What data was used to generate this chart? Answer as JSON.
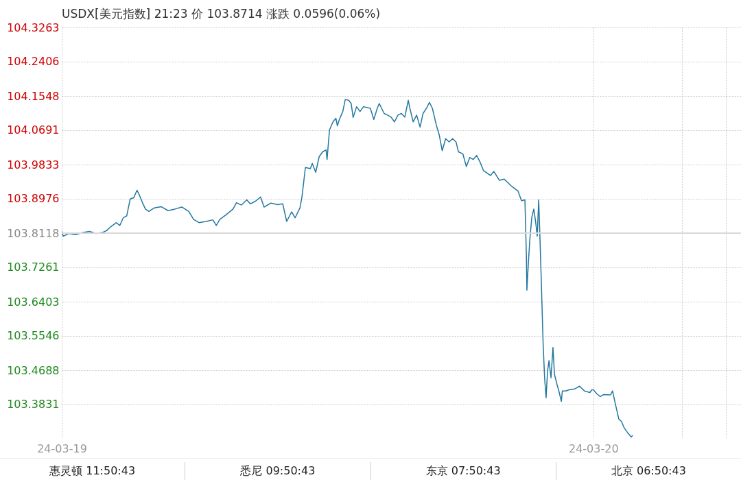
{
  "chart_data": {
    "type": "line",
    "title": "USDX[美元指数] 21:23 价 103.8714 涨跌 0.0596(0.06%)",
    "annotations": [
      "惠灵顿 11:50:43",
      "悉尼 09:50:43",
      "东京 07:50:43",
      "北京 06:50:43"
    ],
    "x": [
      "--03-19T06:00",
      "--03-19T06:03",
      "--03-19T06:14",
      "--03-19T06:28",
      "--03-19T06:42",
      "--03-19T06:56",
      "--03-19T07:10",
      "--03-19T07:24",
      "--03-19T07:31",
      "--03-19T07:38",
      "--03-19T07:51",
      "--03-19T07:58",
      "--03-19T08:05",
      "--03-19T08:12",
      "--03-19T08:19",
      "--03-19T08:26",
      "--03-19T08:33",
      "--03-19T08:37",
      "--03-19T08:44",
      "--03-19T08:50",
      "--03-19T08:57",
      "--03-19T09:08",
      "--03-19T09:22",
      "--03-19T09:36",
      "--03-19T09:50",
      "--03-19T10:04",
      "--03-19T10:18",
      "--03-19T10:28",
      "--03-19T10:39",
      "--03-19T10:53",
      "--03-19T11:07",
      "--03-19T11:14",
      "--03-19T11:21",
      "--03-19T11:34",
      "--03-19T11:48",
      "--03-19T11:55",
      "--03-19T12:05",
      "--03-19T12:16",
      "--03-19T12:23",
      "--03-19T12:34",
      "--03-19T12:44",
      "--03-19T12:51",
      "--03-19T13:05",
      "--03-19T13:19",
      "--03-19T13:29",
      "--03-19T13:37",
      "--03-19T13:47",
      "--03-19T13:54",
      "--03-19T14:04",
      "--03-19T14:08",
      "--03-19T14:15",
      "--03-19T14:25",
      "--03-19T14:29",
      "--03-19T14:36",
      "--03-19T14:43",
      "--03-19T14:50",
      "--03-19T14:57",
      "--03-19T14:59",
      "--03-19T15:04",
      "--03-19T15:11",
      "--03-19T15:17",
      "--03-19T15:20",
      "--03-19T15:24",
      "--03-19T15:31",
      "--03-19T15:36",
      "--03-19T15:43",
      "--03-19T15:48",
      "--03-19T15:52",
      "--03-19T15:59",
      "--03-19T16:06",
      "--03-19T16:13",
      "--03-19T16:27",
      "--03-19T16:34",
      "--03-19T16:41",
      "--03-19T16:45",
      "--03-19T16:55",
      "--03-19T17:02",
      "--03-19T17:09",
      "--03-19T17:16",
      "--03-19T17:23",
      "--03-19T17:30",
      "--03-19T17:37",
      "--03-19T17:44",
      "--03-19T17:48",
      "--03-19T17:54",
      "--03-19T18:01",
      "--03-19T18:08",
      "--03-19T18:14",
      "--03-19T18:21",
      "--03-19T18:27",
      "--03-19T18:33",
      "--03-19T18:41",
      "--03-19T18:47",
      "--03-19T18:53",
      "--03-19T19:00",
      "--03-19T19:07",
      "--03-19T19:14",
      "--03-19T19:21",
      "--03-19T19:26",
      "--03-19T19:35",
      "--03-19T19:42",
      "--03-19T19:49",
      "--03-19T19:56",
      "--03-19T20:03",
      "--03-19T20:10",
      "--03-19T20:17",
      "--03-19T20:31",
      "--03-19T20:38",
      "--03-19T20:49",
      "--03-19T20:59",
      "--03-19T21:13",
      "--03-19T21:27",
      "--03-19T21:34",
      "--03-19T21:41",
      "--03-19T21:44",
      "--03-19T21:45",
      "--03-19T21:48",
      "--03-19T21:51",
      "--03-19T21:55",
      "--03-19T21:59",
      "--03-19T22:03",
      "--03-19T22:06",
      "--03-19T22:09",
      "--03-19T22:11",
      "--03-19T22:14",
      "--03-19T22:16",
      "--03-19T22:18",
      "--03-19T22:21",
      "--03-19T22:24",
      "--03-19T22:27",
      "--03-19T22:30",
      "--03-19T22:34",
      "--03-19T22:38",
      "--03-19T22:41",
      "--03-19T22:46",
      "--03-19T22:50",
      "--03-19T22:55",
      "--03-19T22:57",
      "--03-19T23:04",
      "--03-19T23:11",
      "--03-19T23:22",
      "--03-19T23:32",
      "--03-19T23:42",
      "--03-19T23:53",
      "--03-19T23:57",
      "--03-20T00:00",
      "--03-20T00:07",
      "--03-20T00:14",
      "--03-20T00:21",
      "--03-20T00:35",
      "--03-20T00:39",
      "--03-20T00:45",
      "--03-20T00:52",
      "--03-20T00:57",
      "--03-20T01:03",
      "--03-20T01:10",
      "--03-20T01:17",
      "--03-20T01:20"
    ],
    "series": [
      {
        "color": "#23779f",
        "values": [
          103.816,
          103.804,
          103.811,
          103.808,
          103.813,
          103.816,
          103.811,
          103.814,
          103.818,
          103.826,
          103.838,
          103.831,
          103.85,
          103.855,
          103.897,
          103.9,
          103.919,
          103.909,
          103.888,
          103.872,
          103.866,
          103.875,
          103.878,
          103.868,
          103.872,
          103.877,
          103.866,
          103.846,
          103.838,
          103.841,
          103.845,
          103.831,
          103.846,
          103.858,
          103.872,
          103.888,
          103.882,
          103.895,
          103.885,
          103.892,
          103.902,
          103.877,
          103.887,
          103.883,
          103.885,
          103.841,
          103.865,
          103.85,
          103.875,
          103.902,
          103.976,
          103.973,
          103.986,
          103.964,
          104.003,
          104.015,
          104.02,
          103.996,
          104.07,
          104.09,
          104.099,
          104.08,
          104.096,
          104.116,
          104.146,
          104.144,
          104.136,
          104.101,
          104.128,
          104.116,
          104.128,
          104.124,
          104.096,
          104.124,
          104.136,
          104.111,
          104.107,
          104.102,
          104.09,
          104.107,
          104.111,
          104.102,
          104.144,
          104.12,
          104.09,
          104.107,
          104.077,
          104.111,
          104.124,
          104.139,
          104.124,
          104.082,
          104.057,
          104.018,
          104.048,
          104.04,
          104.048,
          104.04,
          104.015,
          104.01,
          103.978,
          104.001,
          103.996,
          104.006,
          103.989,
          103.968,
          103.956,
          103.966,
          103.944,
          103.947,
          103.93,
          103.917,
          103.893,
          103.895,
          103.754,
          103.669,
          103.737,
          103.796,
          103.851,
          103.872,
          103.838,
          103.804,
          103.895,
          103.821,
          103.703,
          103.619,
          103.535,
          103.45,
          103.4,
          103.467,
          103.493,
          103.45,
          103.526,
          103.459,
          103.434,
          103.417,
          103.391,
          103.417,
          103.417,
          103.42,
          103.422,
          103.429,
          103.417,
          103.413,
          103.42,
          103.42,
          103.41,
          103.403,
          103.408,
          103.407,
          103.417,
          103.383,
          103.346,
          103.341,
          103.324,
          103.312,
          103.302,
          103.306
        ]
      }
    ],
    "ylim": [
      103.2973,
      104.3263
    ],
    "yticks": [
      103.3831,
      103.4688,
      103.5546,
      103.6403,
      103.7261,
      103.8118,
      103.8976,
      103.9833,
      104.0691,
      104.1548,
      104.2406,
      104.3263
    ],
    "xlim": [
      "--03-19T06:00",
      "--03-20T05:00"
    ],
    "xticks": [
      {
        "value": "--03-19T06:00",
        "label": "24-03-19"
      },
      {
        "value": "--03-20T00:00",
        "label": "24-03-20"
      },
      {
        "value": "--03-20T03:00",
        "label": null
      },
      {
        "value": "--03-20T04:30",
        "label": null
      }
    ],
    "ref_lines": [
      {
        "axis": "y",
        "value": 103.8118,
        "color": "#d9d9d9"
      }
    ],
    "grid": true
  }
}
